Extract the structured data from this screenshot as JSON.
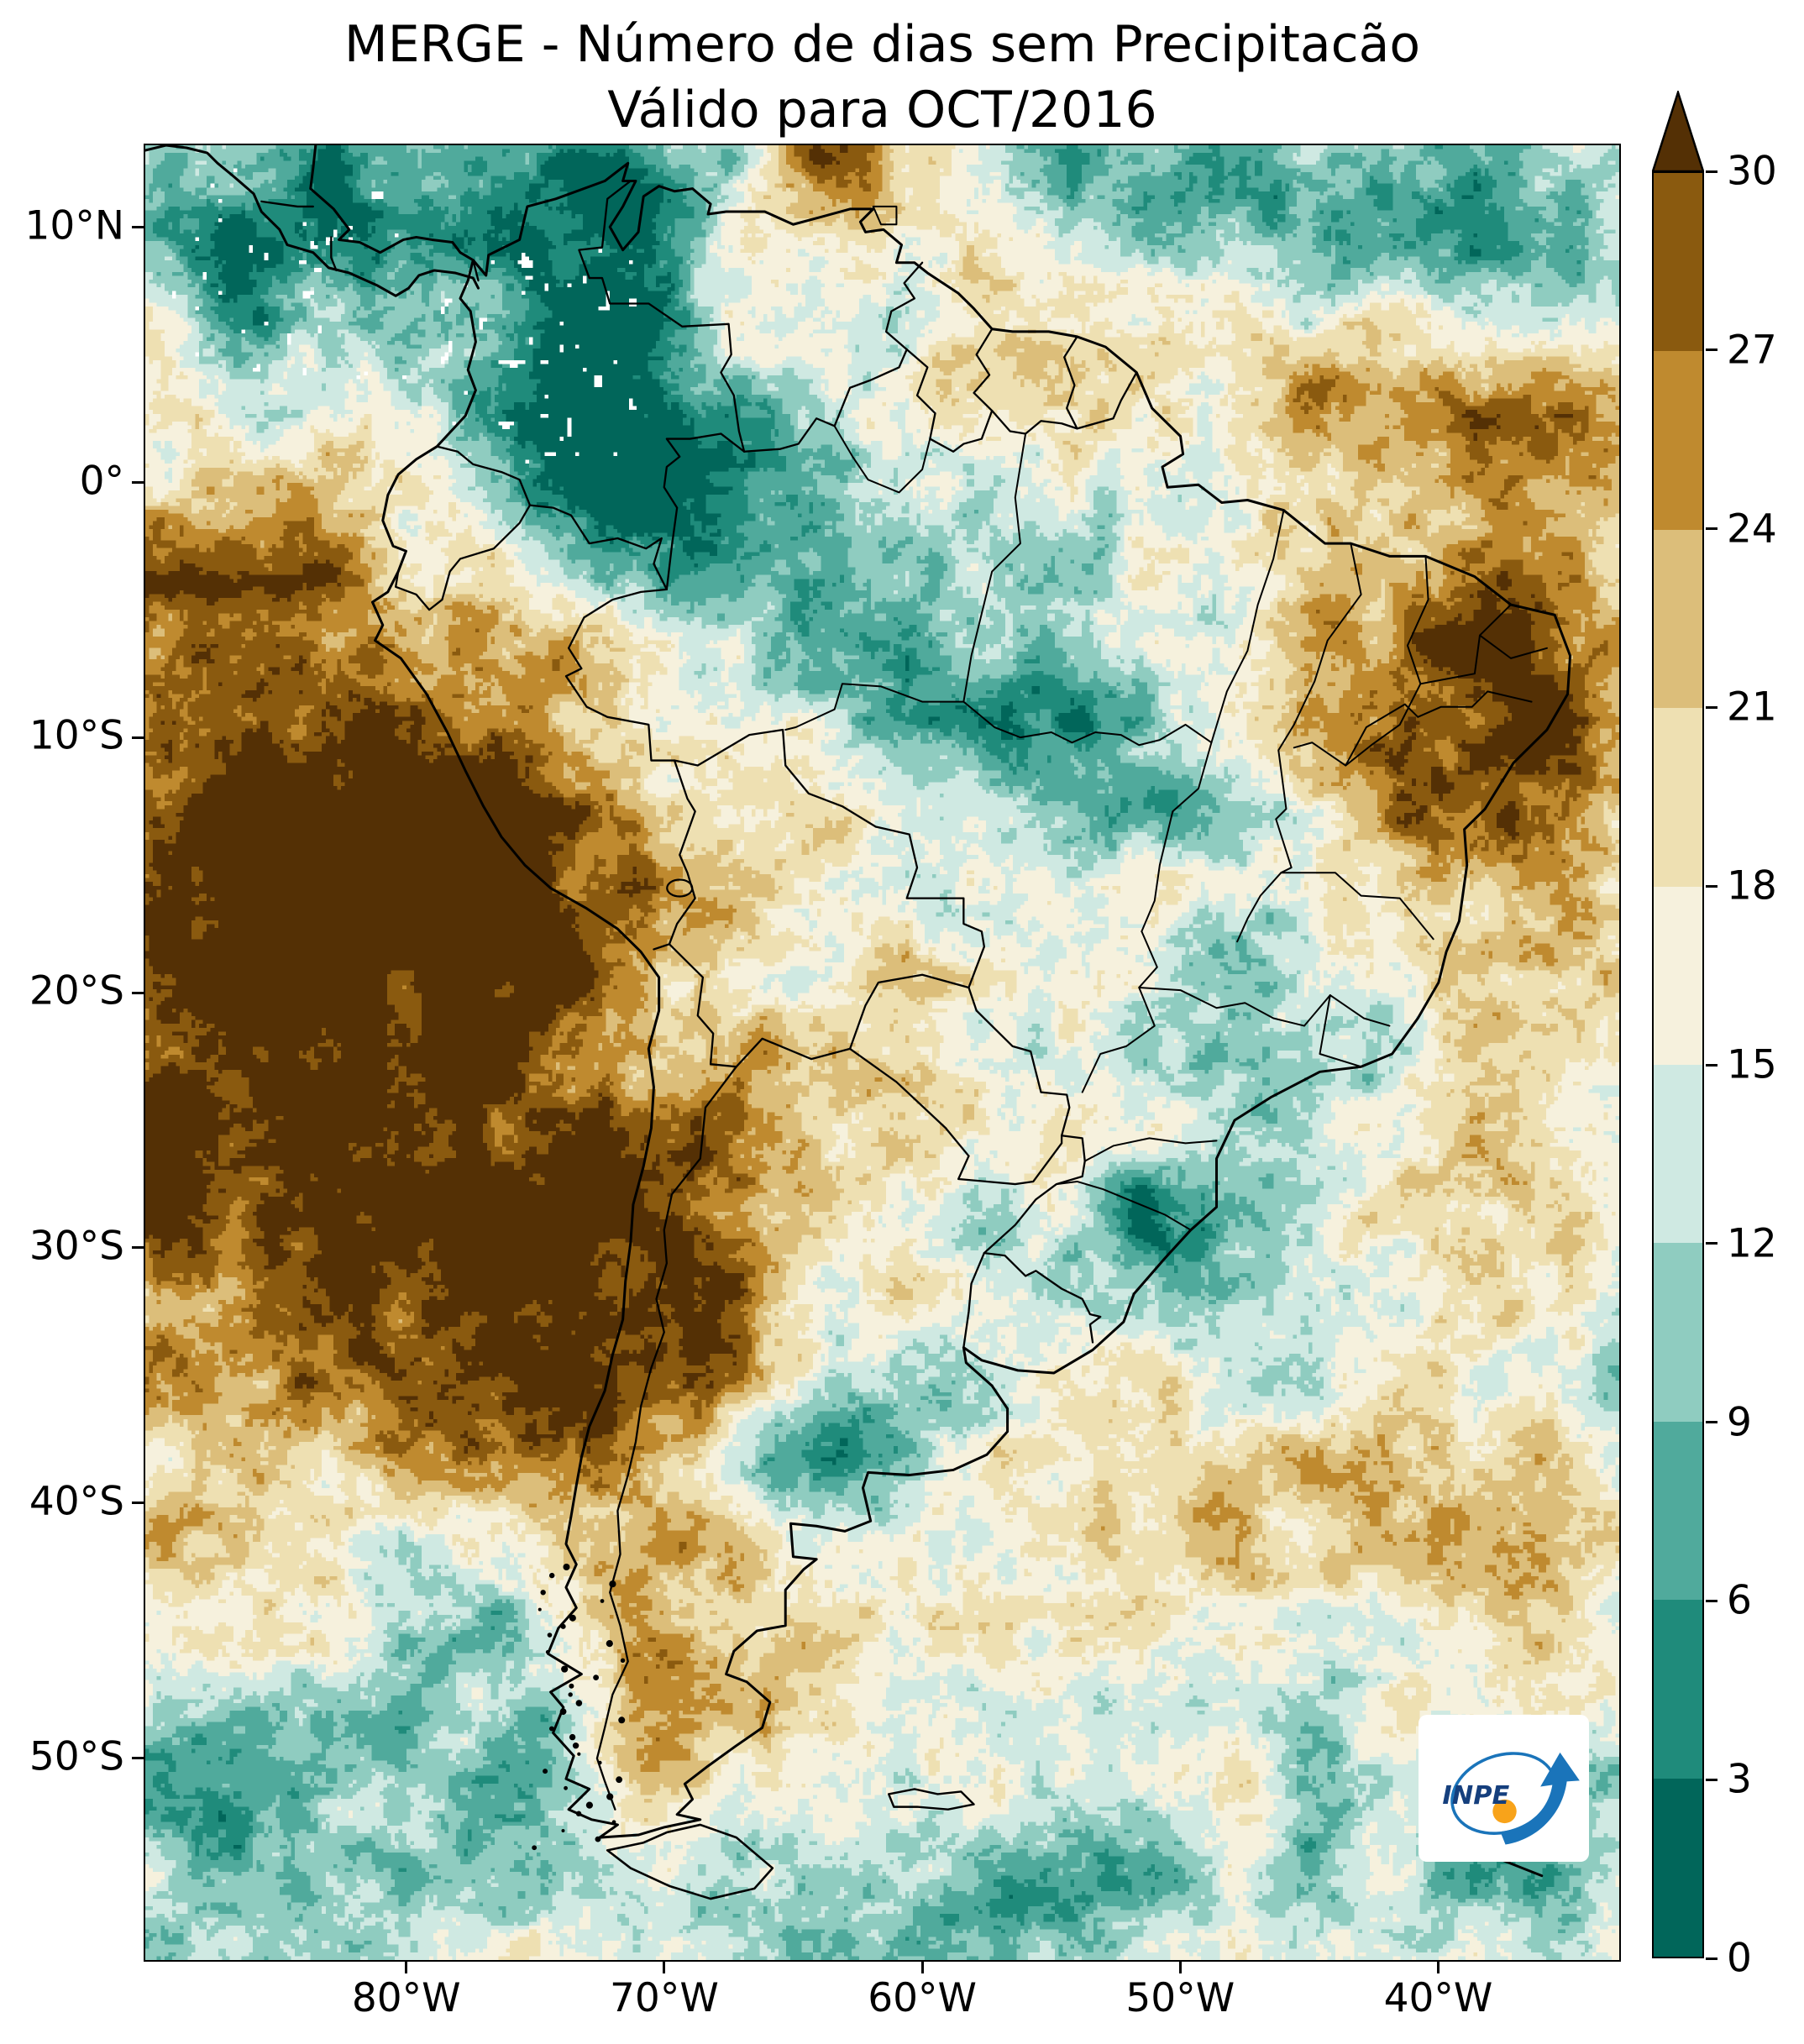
{
  "title": {
    "line1": "MERGE - Número de dias sem Precipitacão",
    "line2": "Válido para OCT/2016"
  },
  "axes": {
    "lat_ticks": [
      {
        "label": "10°N",
        "deg": 10
      },
      {
        "label": "0°",
        "deg": 0
      },
      {
        "label": "10°S",
        "deg": -10
      },
      {
        "label": "20°S",
        "deg": -20
      },
      {
        "label": "30°S",
        "deg": -30
      },
      {
        "label": "40°S",
        "deg": -40
      },
      {
        "label": "50°S",
        "deg": -50
      }
    ],
    "lon_ticks": [
      {
        "label": "80°W",
        "deg": -80
      },
      {
        "label": "70°W",
        "deg": -70
      },
      {
        "label": "60°W",
        "deg": -60
      },
      {
        "label": "50°W",
        "deg": -50
      },
      {
        "label": "40°W",
        "deg": -40
      }
    ]
  },
  "colorbar": {
    "min": 0,
    "max": 30,
    "step": 3,
    "tick_labels": [
      "0",
      "3",
      "6",
      "9",
      "12",
      "15",
      "18",
      "21",
      "24",
      "27",
      "30"
    ],
    "band_colors": [
      "#01665a",
      "#1f8b7b",
      "#50aa9c",
      "#8fccc0",
      "#cfe9e2",
      "#f6f1dd",
      "#eee0b2",
      "#dcbe7a",
      "#bf8a2f",
      "#8a5a0f"
    ],
    "over_color": "#543005"
  },
  "logo": {
    "text": "INPE"
  }
}
